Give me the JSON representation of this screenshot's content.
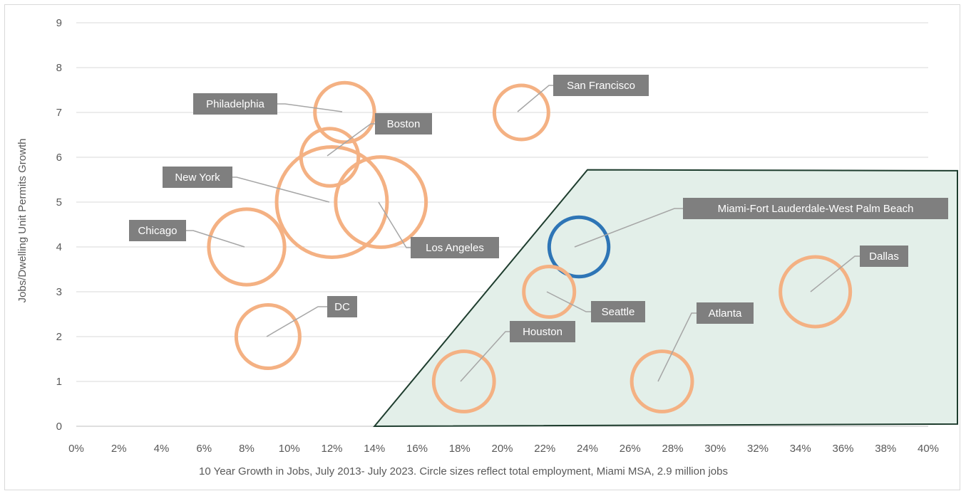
{
  "chart_data": {
    "type": "scatter",
    "subtype": "bubble",
    "title": "",
    "xlabel": "10 Year Growth in Jobs, July 2013- July 2023. Circle sizes reflect total employment, Miami MSA, 2.9 million jobs",
    "ylabel": "Jobs/Dwelling Unit Permits Growth",
    "xlim": [
      0,
      0.4
    ],
    "ylim": [
      0,
      9
    ],
    "xticks": [
      "0%",
      "2%",
      "4%",
      "6%",
      "8%",
      "10%",
      "12%",
      "14%",
      "16%",
      "18%",
      "20%",
      "22%",
      "24%",
      "26%",
      "28%",
      "30%",
      "32%",
      "34%",
      "36%",
      "38%",
      "40%"
    ],
    "yticks": [
      "0",
      "1",
      "2",
      "3",
      "4",
      "5",
      "6",
      "7",
      "8",
      "9"
    ],
    "grid": "horizontal",
    "highlight_region": {
      "fill": "#e3efe9",
      "stroke": "#1e3d2e",
      "vertices": [
        [
          0.14,
          0
        ],
        [
          0.24,
          5.72
        ],
        [
          0.4,
          5.7
        ],
        [
          0.4,
          0.05
        ]
      ]
    },
    "points": [
      {
        "label": "Philadelphia",
        "x": 0.126,
        "y": 7,
        "size": 2.9,
        "color": "#f4b183"
      },
      {
        "label": "Boston",
        "x": 0.119,
        "y": 6,
        "size": 2.7,
        "color": "#f4b183"
      },
      {
        "label": "New York",
        "x": 0.12,
        "y": 5,
        "size": 10.0,
        "color": "#f4b183"
      },
      {
        "label": "Los Angeles",
        "x": 0.143,
        "y": 5,
        "size": 6.7,
        "color": "#f4b183"
      },
      {
        "label": "Chicago",
        "x": 0.08,
        "y": 4,
        "size": 4.7,
        "color": "#f4b183"
      },
      {
        "label": "DC",
        "x": 0.09,
        "y": 2,
        "size": 3.3,
        "color": "#f4b183"
      },
      {
        "label": "San Francisco",
        "x": 0.209,
        "y": 7,
        "size": 2.4,
        "color": "#f4b183"
      },
      {
        "label": "Miami-Fort Lauderdale-West Palm Beach",
        "x": 0.236,
        "y": 4,
        "size": 2.9,
        "color": "#2e75b6"
      },
      {
        "label": "Seattle",
        "x": 0.222,
        "y": 3,
        "size": 2.1,
        "color": "#f4b183"
      },
      {
        "label": "Dallas",
        "x": 0.347,
        "y": 3,
        "size": 4.0,
        "color": "#f4b183"
      },
      {
        "label": "Atlanta",
        "x": 0.275,
        "y": 1,
        "size": 3.0,
        "color": "#f4b183"
      },
      {
        "label": "Houston",
        "x": 0.182,
        "y": 1,
        "size": 3.0,
        "color": "#f4b183"
      }
    ]
  }
}
